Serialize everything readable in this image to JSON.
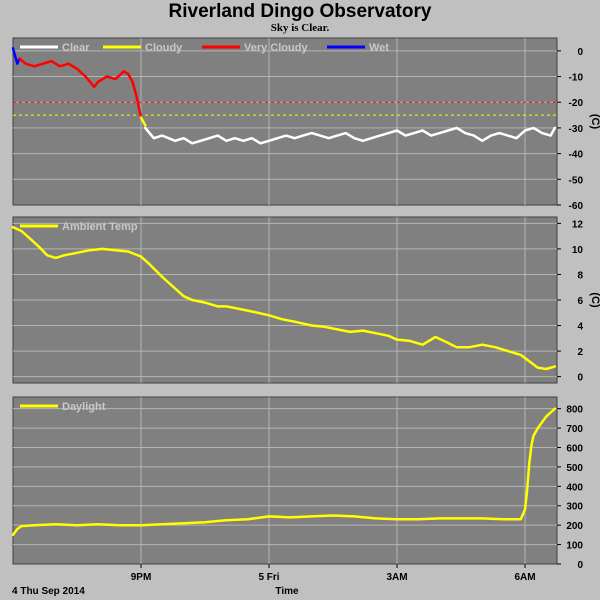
{
  "title": "Riverland Dingo Observatory",
  "subtitle": "Sky is Clear.",
  "colors": {
    "background": "#c0c0c0",
    "plot_bg": "#808080",
    "grid": "#b4b4b4",
    "clear": "#ffffff",
    "cloudy": "#ffff00",
    "very_cloudy": "#ff0000",
    "wet": "#0000ff",
    "ambient": "#ffff00",
    "daylight": "#ffff00"
  },
  "x_axis": {
    "label": "Time",
    "start_label": "4 Thu Sep 2014",
    "ticks": [
      {
        "hours": 3,
        "label": "9PM"
      },
      {
        "hours": 6,
        "label": "5 Fri"
      },
      {
        "hours": 9,
        "label": "3AM"
      },
      {
        "hours": 12,
        "label": "6AM"
      }
    ]
  },
  "chart_data": [
    {
      "type": "line",
      "name": "sky-temperature",
      "unit_label": "(C)",
      "x_range": [
        0,
        12.75
      ],
      "ylim": [
        -60,
        5
      ],
      "yticks": [
        0,
        -10,
        -20,
        -30,
        -40,
        -50,
        -60
      ],
      "grid": true,
      "legend": [
        "Clear",
        "Cloudy",
        "Very Cloudy",
        "Wet"
      ],
      "legend_placement": "top-left",
      "thresholds": [
        {
          "y": -20,
          "color": "#ff0000"
        },
        {
          "y": -25,
          "color": "#ffff00"
        }
      ],
      "series": [
        {
          "name": "Wet",
          "color": "#0000ff",
          "x": [
            0.0,
            0.05,
            0.1,
            0.15
          ],
          "y": [
            1,
            -2,
            -5,
            -3
          ]
        },
        {
          "name": "Very Cloudy",
          "color": "#ff0000",
          "x": [
            0.15,
            0.3,
            0.5,
            0.7,
            0.9,
            1.1,
            1.3,
            1.5,
            1.7,
            1.9,
            2.0,
            2.2,
            2.4,
            2.6,
            2.7,
            2.8,
            2.9,
            3.0
          ],
          "y": [
            -3,
            -5,
            -6,
            -5,
            -4,
            -6,
            -5,
            -7,
            -10,
            -14,
            -12,
            -10,
            -11,
            -8,
            -9,
            -12,
            -18,
            -26
          ]
        },
        {
          "name": "Cloudy",
          "color": "#ffff00",
          "x": [
            3.0,
            3.1
          ],
          "y": [
            -26,
            -29
          ]
        },
        {
          "name": "Clear",
          "color": "#ffffff",
          "x": [
            3.1,
            3.3,
            3.5,
            3.8,
            4.0,
            4.2,
            4.4,
            4.6,
            4.8,
            5.0,
            5.2,
            5.4,
            5.6,
            5.8,
            6.0,
            6.2,
            6.4,
            6.6,
            6.8,
            7.0,
            7.2,
            7.4,
            7.6,
            7.8,
            8.0,
            8.2,
            8.4,
            8.6,
            8.8,
            9.0,
            9.2,
            9.4,
            9.6,
            9.8,
            10.0,
            10.2,
            10.4,
            10.6,
            10.8,
            11.0,
            11.2,
            11.4,
            11.6,
            11.8,
            12.0,
            12.2,
            12.4,
            12.6,
            12.7
          ],
          "y": [
            -30,
            -34,
            -33,
            -35,
            -34,
            -36,
            -35,
            -34,
            -33,
            -35,
            -34,
            -35,
            -34,
            -36,
            -35,
            -34,
            -33,
            -34,
            -33,
            -32,
            -33,
            -34,
            -33,
            -32,
            -34,
            -35,
            -34,
            -33,
            -32,
            -31,
            -33,
            -32,
            -31,
            -33,
            -32,
            -31,
            -30,
            -32,
            -33,
            -35,
            -33,
            -32,
            -33,
            -34,
            -31,
            -30,
            -32,
            -33,
            -30
          ]
        }
      ]
    },
    {
      "type": "line",
      "name": "ambient-temperature",
      "unit_label": "(C)",
      "x_range": [
        0,
        12.75
      ],
      "ylim": [
        -0.5,
        12.5
      ],
      "yticks": [
        0,
        2,
        4,
        6,
        8,
        10,
        12
      ],
      "grid": true,
      "legend": [
        "Ambient Temp"
      ],
      "legend_placement": "top-left",
      "series": [
        {
          "name": "Ambient Temp",
          "color": "#ffff00",
          "x": [
            0.0,
            0.2,
            0.4,
            0.6,
            0.8,
            1.0,
            1.2,
            1.5,
            1.8,
            2.1,
            2.4,
            2.7,
            3.0,
            3.2,
            3.5,
            3.8,
            4.0,
            4.2,
            4.5,
            4.8,
            5.0,
            5.3,
            5.6,
            6.0,
            6.3,
            6.6,
            7.0,
            7.3,
            7.6,
            7.9,
            8.2,
            8.5,
            8.8,
            9.0,
            9.3,
            9.6,
            9.9,
            10.1,
            10.4,
            10.7,
            11.0,
            11.3,
            11.6,
            11.9,
            12.1,
            12.3,
            12.5,
            12.7
          ],
          "y": [
            11.7,
            11.4,
            10.8,
            10.2,
            9.5,
            9.3,
            9.5,
            9.7,
            9.9,
            10.0,
            9.9,
            9.8,
            9.4,
            8.8,
            7.8,
            6.9,
            6.3,
            6.0,
            5.8,
            5.5,
            5.5,
            5.3,
            5.1,
            4.8,
            4.5,
            4.3,
            4.0,
            3.9,
            3.7,
            3.5,
            3.6,
            3.4,
            3.2,
            2.9,
            2.8,
            2.5,
            3.1,
            2.8,
            2.3,
            2.3,
            2.5,
            2.3,
            2.0,
            1.7,
            1.2,
            0.7,
            0.6,
            0.8
          ]
        }
      ]
    },
    {
      "type": "line",
      "name": "daylight",
      "unit_label": "",
      "x_range": [
        0,
        12.75
      ],
      "ylim": [
        0,
        860
      ],
      "yticks": [
        0,
        100,
        200,
        300,
        400,
        500,
        600,
        700,
        800
      ],
      "grid": true,
      "legend": [
        "Daylight"
      ],
      "legend_placement": "top-left",
      "series": [
        {
          "name": "Daylight",
          "color": "#ffff00",
          "x": [
            0.0,
            0.1,
            0.2,
            0.5,
            1.0,
            1.5,
            2.0,
            2.5,
            3.0,
            3.5,
            4.0,
            4.5,
            5.0,
            5.5,
            6.0,
            6.5,
            7.0,
            7.5,
            8.0,
            8.5,
            9.0,
            9.5,
            10.0,
            10.5,
            11.0,
            11.5,
            11.9,
            12.0,
            12.05,
            12.1,
            12.15,
            12.2,
            12.3,
            12.4,
            12.5,
            12.6,
            12.7
          ],
          "y": [
            150,
            180,
            195,
            200,
            205,
            200,
            205,
            200,
            200,
            205,
            210,
            215,
            225,
            230,
            245,
            240,
            245,
            250,
            245,
            235,
            230,
            230,
            235,
            235,
            235,
            230,
            230,
            280,
            380,
            520,
            610,
            660,
            700,
            730,
            760,
            780,
            800
          ]
        }
      ]
    }
  ]
}
